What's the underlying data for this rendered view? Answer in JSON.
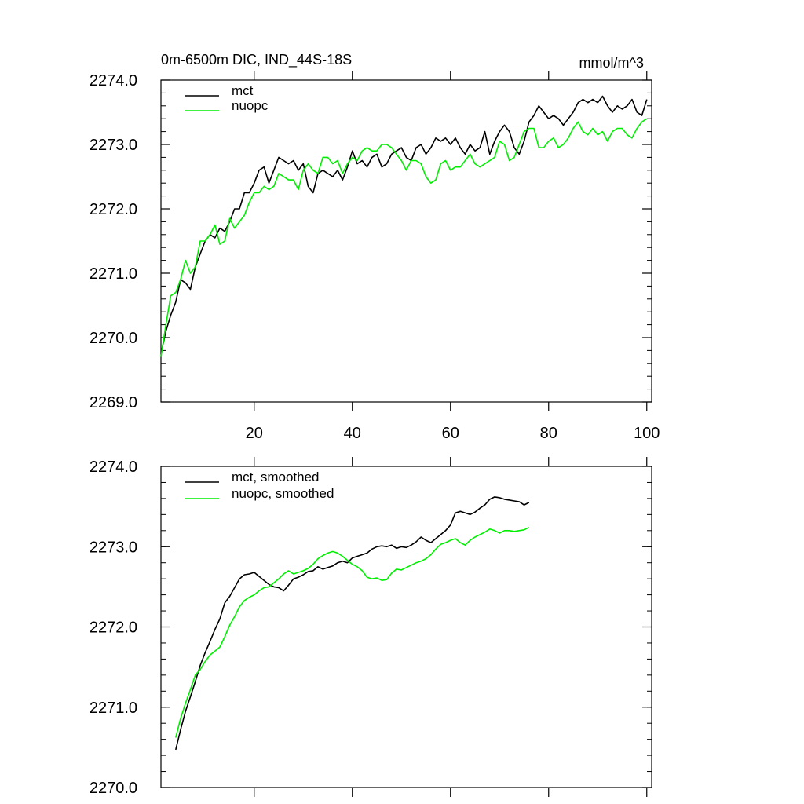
{
  "chart_data": [
    {
      "type": "line",
      "title": "0m-6500m DIC, IND_44S-18S",
      "units": "mmol/m^3",
      "xlim": [
        1,
        101
      ],
      "ylim": [
        2269.0,
        2274.0
      ],
      "xticks": [
        20,
        40,
        60,
        80,
        100
      ],
      "xtick_labels": [
        "20",
        "40",
        "60",
        "80",
        "100"
      ],
      "show_x_tick_labels": true,
      "yticks": [
        2269.0,
        2270.0,
        2271.0,
        2272.0,
        2273.0,
        2274.0
      ],
      "ytick_labels": [
        "2269.0",
        "2270.0",
        "2271.0",
        "2272.0",
        "2273.0",
        "2274.0"
      ],
      "grid": false,
      "legend_position": "top-left",
      "series": [
        {
          "name": "mct",
          "color": "#000000",
          "x_start": 1,
          "values": [
            2269.75,
            2270.1,
            2270.35,
            2270.55,
            2270.9,
            2270.85,
            2270.75,
            2271.1,
            2271.3,
            2271.5,
            2271.6,
            2271.55,
            2271.7,
            2271.65,
            2271.8,
            2272.0,
            2272.0,
            2272.25,
            2272.25,
            2272.4,
            2272.6,
            2272.65,
            2272.4,
            2272.6,
            2272.8,
            2272.75,
            2272.7,
            2272.75,
            2272.6,
            2272.7,
            2272.35,
            2272.25,
            2272.55,
            2272.6,
            2272.55,
            2272.5,
            2272.6,
            2272.45,
            2272.65,
            2272.9,
            2272.7,
            2272.75,
            2272.65,
            2272.8,
            2272.85,
            2272.65,
            2272.7,
            2272.85,
            2272.9,
            2272.95,
            2272.8,
            2272.75,
            2272.95,
            2273.0,
            2272.85,
            2272.95,
            2273.1,
            2273.05,
            2273.1,
            2273.0,
            2273.1,
            2272.95,
            2272.85,
            2273.0,
            2272.9,
            2272.95,
            2273.2,
            2272.85,
            2273.05,
            2273.2,
            2273.3,
            2273.2,
            2272.95,
            2272.85,
            2273.05,
            2273.35,
            2273.45,
            2273.6,
            2273.5,
            2273.4,
            2273.45,
            2273.4,
            2273.3,
            2273.4,
            2273.5,
            2273.65,
            2273.7,
            2273.65,
            2273.7,
            2273.65,
            2273.75,
            2273.6,
            2273.5,
            2273.6,
            2273.55,
            2273.6,
            2273.7,
            2273.5,
            2273.45,
            2273.7
          ]
        },
        {
          "name": "nuopc",
          "color": "#00ee00",
          "x_start": 1,
          "values": [
            2269.7,
            2270.2,
            2270.65,
            2270.7,
            2270.9,
            2271.2,
            2271.0,
            2271.1,
            2271.5,
            2271.5,
            2271.6,
            2271.75,
            2271.45,
            2271.5,
            2271.85,
            2271.7,
            2271.8,
            2271.9,
            2272.1,
            2272.25,
            2272.25,
            2272.35,
            2272.3,
            2272.35,
            2272.55,
            2272.5,
            2272.45,
            2272.45,
            2272.3,
            2272.6,
            2272.7,
            2272.6,
            2272.55,
            2272.8,
            2272.8,
            2272.7,
            2272.75,
            2272.55,
            2272.7,
            2272.8,
            2272.75,
            2272.9,
            2272.95,
            2272.9,
            2272.9,
            2273.0,
            2273.0,
            2272.95,
            2272.85,
            2272.75,
            2272.6,
            2272.75,
            2272.75,
            2272.7,
            2272.5,
            2272.4,
            2272.45,
            2272.7,
            2272.75,
            2272.6,
            2272.65,
            2272.65,
            2272.75,
            2272.85,
            2272.7,
            2272.65,
            2272.7,
            2272.75,
            2272.8,
            2273.05,
            2273.0,
            2272.75,
            2272.8,
            2273.0,
            2273.2,
            2273.25,
            2273.25,
            2272.95,
            2272.95,
            2273.05,
            2273.1,
            2272.95,
            2273.0,
            2273.1,
            2273.25,
            2273.35,
            2273.2,
            2273.15,
            2273.25,
            2273.15,
            2273.2,
            2273.05,
            2273.2,
            2273.25,
            2273.25,
            2273.15,
            2273.1,
            2273.25,
            2273.35,
            2273.4
          ]
        }
      ]
    },
    {
      "type": "line",
      "xlim": [
        1,
        101
      ],
      "ylim": [
        2270.0,
        2274.0
      ],
      "xticks": [
        20,
        40,
        60,
        80,
        100
      ],
      "show_x_tick_labels": false,
      "yticks": [
        2270.0,
        2271.0,
        2272.0,
        2273.0,
        2274.0
      ],
      "ytick_labels": [
        "2270.0",
        "2271.0",
        "2272.0",
        "2273.0",
        "2274.0"
      ],
      "grid": false,
      "legend_position": "top-left",
      "series": [
        {
          "name": "mct, smoothed",
          "color": "#000000",
          "x_start": 4,
          "values": [
            2270.47,
            2270.72,
            2270.95,
            2271.13,
            2271.32,
            2271.52,
            2271.68,
            2271.82,
            2271.97,
            2272.1,
            2272.3,
            2272.38,
            2272.49,
            2272.6,
            2272.65,
            2272.66,
            2272.68,
            2272.63,
            2272.58,
            2272.53,
            2272.5,
            2272.49,
            2272.45,
            2272.52,
            2272.6,
            2272.62,
            2272.65,
            2272.69,
            2272.7,
            2272.75,
            2272.72,
            2272.74,
            2272.76,
            2272.8,
            2272.82,
            2272.8,
            2272.86,
            2272.88,
            2272.9,
            2272.92,
            2272.97,
            2273.0,
            2273.01,
            2273.0,
            2273.02,
            2272.98,
            2273.0,
            2272.99,
            2273.02,
            2273.06,
            2273.12,
            2273.08,
            2273.05,
            2273.1,
            2273.15,
            2273.2,
            2273.27,
            2273.42,
            2273.44,
            2273.42,
            2273.4,
            2273.43,
            2273.48,
            2273.52,
            2273.59,
            2273.62,
            2273.61,
            2273.59,
            2273.58,
            2273.57,
            2273.56,
            2273.52,
            2273.55
          ]
        },
        {
          "name": "nuopc, smoothed",
          "color": "#00ee00",
          "x_start": 4,
          "values": [
            2270.62,
            2270.86,
            2271.05,
            2271.22,
            2271.4,
            2271.47,
            2271.57,
            2271.65,
            2271.7,
            2271.75,
            2271.88,
            2272.02,
            2272.13,
            2272.25,
            2272.33,
            2272.37,
            2272.4,
            2272.45,
            2272.49,
            2272.5,
            2272.55,
            2272.6,
            2272.66,
            2272.7,
            2272.66,
            2272.68,
            2272.7,
            2272.73,
            2272.78,
            2272.85,
            2272.89,
            2272.92,
            2272.94,
            2272.92,
            2272.88,
            2272.83,
            2272.78,
            2272.75,
            2272.7,
            2272.62,
            2272.6,
            2272.61,
            2272.58,
            2272.59,
            2272.67,
            2272.72,
            2272.71,
            2272.74,
            2272.77,
            2272.8,
            2272.82,
            2272.85,
            2272.9,
            2272.97,
            2273.03,
            2273.05,
            2273.08,
            2273.1,
            2273.05,
            2273.02,
            2273.08,
            2273.12,
            2273.15,
            2273.18,
            2273.22,
            2273.2,
            2273.17,
            2273.2,
            2273.2,
            2273.19,
            2273.2,
            2273.21,
            2273.24
          ]
        }
      ]
    }
  ]
}
